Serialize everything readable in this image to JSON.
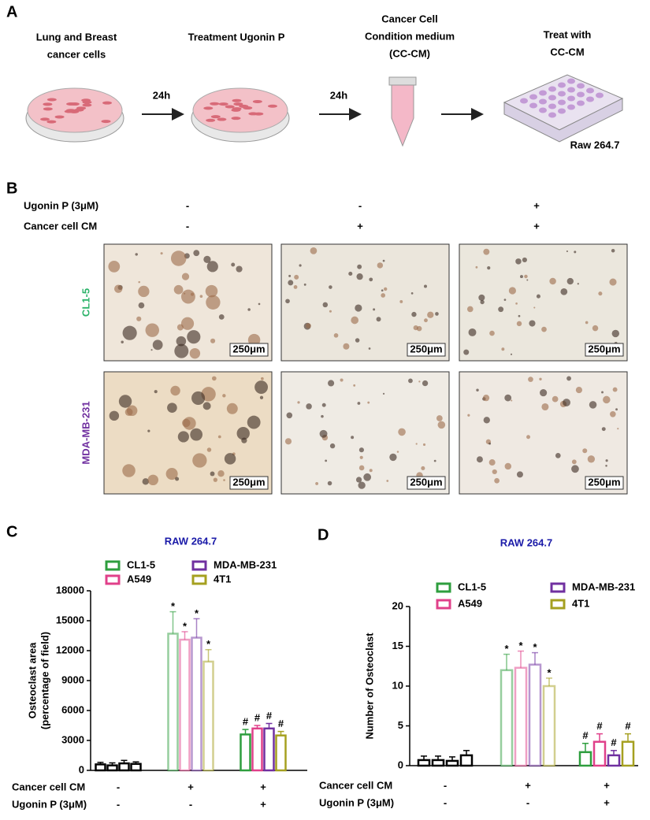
{
  "panel_a": {
    "label": "A",
    "steps": [
      {
        "title": [
          "Lung and Breast",
          "cancer cells"
        ]
      },
      {
        "title": [
          "Treatment Ugonin P"
        ]
      },
      {
        "title": [
          "Cancer Cell",
          "Condition medium",
          "(CC-CM)"
        ]
      },
      {
        "title": [
          "Treat with",
          "CC-CM"
        ]
      }
    ],
    "intervals": [
      "24h",
      "24h"
    ],
    "cell_line": "Raw 264.7"
  },
  "panel_b": {
    "label": "B",
    "conditions": [
      {
        "label": "Ugonin P (3μM)",
        "values": [
          "-",
          "-",
          "+"
        ]
      },
      {
        "label": "Cancer cell CM",
        "values": [
          "-",
          "+",
          "+"
        ]
      }
    ],
    "rows": [
      {
        "label": "CL1-5",
        "color": "#2db36a"
      },
      {
        "label": "MDA-MB-231",
        "color": "#7030a0"
      }
    ],
    "scale_bar": "250μm"
  },
  "chart_data": [
    {
      "type": "bar",
      "panel": "C",
      "title": "RAW 264.7",
      "ylabel": [
        "Osteoclast area",
        "(percentage of field)"
      ],
      "ylim": [
        0,
        18000
      ],
      "yticks": [
        0,
        3000,
        6000,
        9000,
        12000,
        15000,
        18000
      ],
      "control_color": "#000000",
      "conditions": [
        {
          "label": "Cancer cell CM",
          "values": [
            "-",
            "+",
            "+"
          ]
        },
        {
          "label": "Ugonin P (3μM)",
          "values": [
            "-",
            "-",
            "+"
          ]
        }
      ],
      "series": [
        {
          "name": "CL1-5",
          "color": "#2e9e3e",
          "values": [
            600,
            13700,
            3600
          ],
          "errors": [
            200,
            2200,
            500
          ],
          "annotations": [
            null,
            "*",
            "#"
          ]
        },
        {
          "name": "A549",
          "color": "#e0408a",
          "values": [
            500,
            13100,
            4200
          ],
          "errors": [
            250,
            800,
            300
          ],
          "annotations": [
            null,
            "*",
            "#"
          ]
        },
        {
          "name": "MDA-MB-231",
          "color": "#7030a0",
          "values": [
            700,
            13300,
            4200
          ],
          "errors": [
            300,
            1900,
            500
          ],
          "annotations": [
            null,
            "*",
            "#"
          ]
        },
        {
          "name": "4T1",
          "color": "#a5a020",
          "values": [
            650,
            10900,
            3500
          ],
          "errors": [
            200,
            1200,
            400
          ],
          "annotations": [
            null,
            "*",
            "#"
          ]
        }
      ]
    },
    {
      "type": "bar",
      "panel": "D",
      "title": "RAW 264.7",
      "ylabel": [
        "Number of Osteoclast"
      ],
      "ylim": [
        0,
        20
      ],
      "yticks": [
        0,
        5,
        10,
        15,
        20
      ],
      "control_color": "#000000",
      "conditions": [
        {
          "label": "Cancer cell CM",
          "values": [
            "-",
            "+",
            "+"
          ]
        },
        {
          "label": "Ugonin P (3μM)",
          "values": [
            "-",
            "-",
            "+"
          ]
        }
      ],
      "series": [
        {
          "name": "CL1-5",
          "color": "#2e9e3e",
          "values": [
            0.7,
            12,
            1.7
          ],
          "errors": [
            0.5,
            2,
            1.1
          ],
          "annotations": [
            null,
            "*",
            "#"
          ]
        },
        {
          "name": "A549",
          "color": "#e0408a",
          "values": [
            0.7,
            12.3,
            3
          ],
          "errors": [
            0.5,
            2.1,
            1
          ],
          "annotations": [
            null,
            "*",
            "#"
          ]
        },
        {
          "name": "MDA-MB-231",
          "color": "#7030a0",
          "values": [
            0.6,
            12.7,
            1.3
          ],
          "errors": [
            0.5,
            1.5,
            0.6
          ],
          "annotations": [
            null,
            "*",
            "#"
          ]
        },
        {
          "name": "4T1",
          "color": "#a5a020",
          "values": [
            1.3,
            10,
            3
          ],
          "errors": [
            0.6,
            1,
            1
          ],
          "annotations": [
            null,
            "*",
            "#"
          ]
        }
      ]
    }
  ]
}
